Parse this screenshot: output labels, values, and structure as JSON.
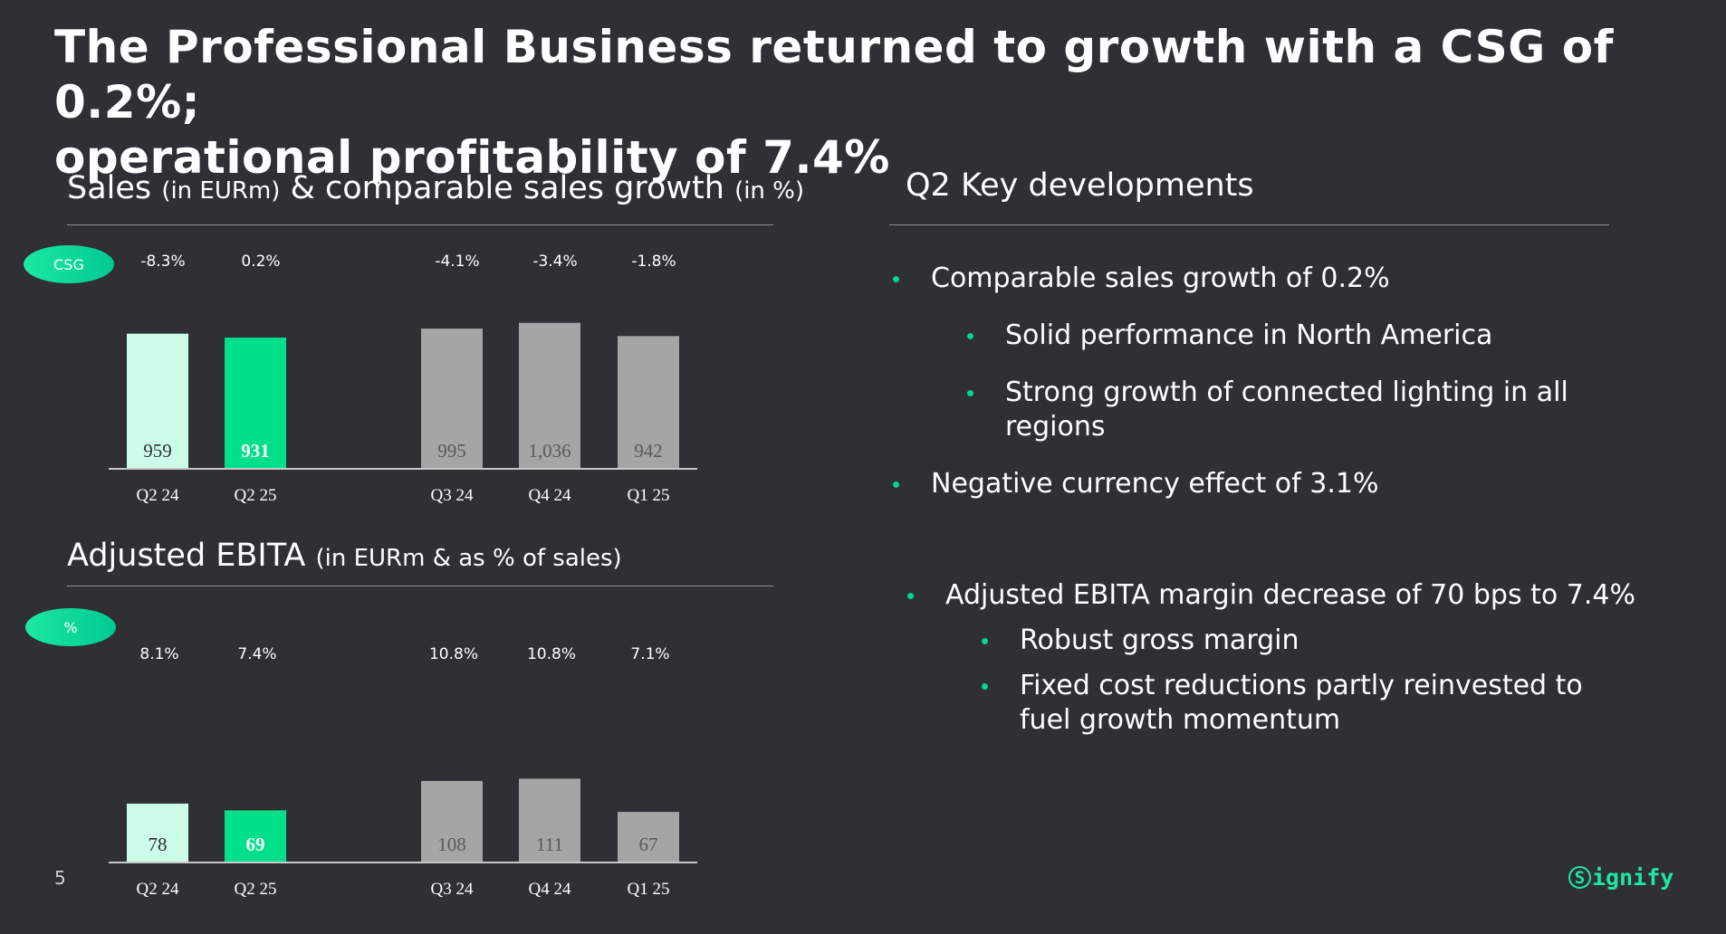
{
  "title": {
    "line1": "The Professional Business returned to growth with a CSG of 0.2%;",
    "line2": "operational profitability of 7.4%"
  },
  "sales_section": {
    "heading_main": "Sales",
    "heading_unit1": "(in EURm)",
    "heading_mid": "& comparable sales growth",
    "heading_unit2": "(in %)",
    "pill_label": "CSG"
  },
  "ebita_section": {
    "heading_main": "Adjusted EBITA",
    "heading_unit": "(in EURm & as % of sales)",
    "pill_label": "%"
  },
  "key_developments": {
    "heading": "Q2 Key developments",
    "bullets_top": [
      {
        "level": 1,
        "text": "Comparable sales growth of 0.2%"
      },
      {
        "level": 2,
        "text": "Solid performance in North America"
      },
      {
        "level": 2,
        "text": "Strong growth of connected lighting in all regions"
      },
      {
        "level": 1,
        "text": "Negative currency effect of 3.1%"
      }
    ],
    "bullets_bottom": [
      {
        "level": 1,
        "text": "Adjusted EBITA margin decrease of 70 bps to 7.4%"
      },
      {
        "level": 2,
        "text": "Robust gross margin"
      },
      {
        "level": 2,
        "text": "Fixed cost reductions partly reinvested to fuel growth momentum"
      }
    ]
  },
  "footer": {
    "page_number": "5",
    "logo_text": "ignify",
    "logo_mark": "S"
  },
  "colors": {
    "background": "#2f2f34",
    "accent": "#00e08a",
    "light_mint": "#ccfde9",
    "grey_bar": "#a5a5a5",
    "bullet": "#00d68f"
  },
  "chart_data": [
    {
      "type": "bar",
      "name": "sales",
      "categories": [
        "Q2 24",
        "Q2 25",
        "Q3 24",
        "Q4 24",
        "Q1 25"
      ],
      "values": [
        959,
        931,
        995,
        1036,
        942
      ],
      "value_labels": [
        "959",
        "931",
        "995",
        "1,036",
        "942"
      ],
      "top_labels": [
        "-8.3%",
        "0.2%",
        "-4.1%",
        "-3.4%",
        "-1.8%"
      ],
      "bar_colors": [
        "#ccfde9",
        "#00e08a",
        "#a5a5a5",
        "#a5a5a5",
        "#a5a5a5"
      ],
      "label_colors": [
        "#2f2f34",
        "#ffffff",
        "#5a5a5a",
        "#5a5a5a",
        "#5a5a5a"
      ],
      "bold_labels": [
        false,
        true,
        false,
        false,
        false
      ]
    },
    {
      "type": "bar",
      "name": "adjusted_ebita",
      "categories": [
        "Q2 24",
        "Q2 25",
        "Q3 24",
        "Q4 24",
        "Q1 25"
      ],
      "values": [
        78,
        69,
        108,
        111,
        67
      ],
      "value_labels": [
        "78",
        "69",
        "108",
        "111",
        "67"
      ],
      "top_labels": [
        "8.1%",
        "7.4%",
        "10.8%",
        "10.8%",
        "7.1%"
      ],
      "bar_colors": [
        "#ccfde9",
        "#00e08a",
        "#a5a5a5",
        "#a5a5a5",
        "#a5a5a5"
      ],
      "label_colors": [
        "#2f2f34",
        "#ffffff",
        "#5a5a5a",
        "#5a5a5a",
        "#5a5a5a"
      ],
      "bold_labels": [
        false,
        true,
        false,
        false,
        false
      ]
    }
  ]
}
